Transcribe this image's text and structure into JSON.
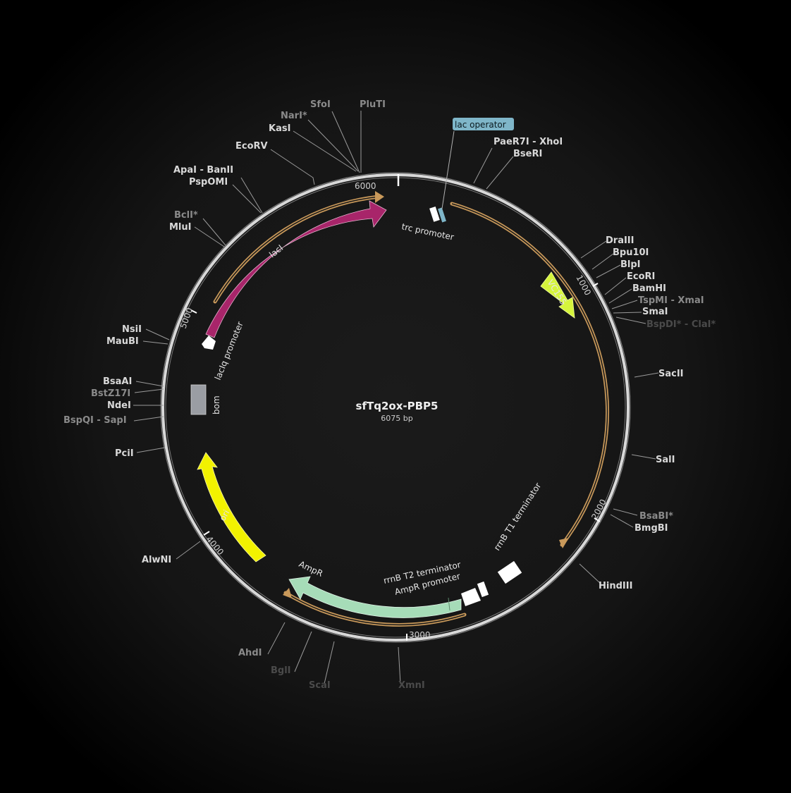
{
  "plasmid": {
    "name": "sfTq2ox-PBP5",
    "length_label": "6075 bp",
    "total_bp": 6075
  },
  "ticks": [
    {
      "label": "1000",
      "bp": 1000
    },
    {
      "label": "2000",
      "bp": 2000
    },
    {
      "label": "3000",
      "bp": 3000
    },
    {
      "label": "4000",
      "bp": 4000
    },
    {
      "label": "5000",
      "bp": 5000
    },
    {
      "label": "6000",
      "bp": 6000
    }
  ],
  "features": {
    "lacI": "lacI",
    "laciq_promoter": "lacIq promoter",
    "bom": "bom",
    "ori": "ori",
    "ampr": "AmpR",
    "ampr_promoter": "AmpR promoter",
    "rrnb_t2": "rrnB T2 terminator",
    "rrnb_t1": "rrnB T1 terminator",
    "vc155": "VC155",
    "trc_promoter": "trc promoter",
    "lac_operator": "lac operator"
  },
  "colors": {
    "lacI": "#a8256a",
    "ori": "#f2f200",
    "ampr": "#a6dcb8",
    "vc155": "#d6f53c",
    "orf_outline": "#c9995a",
    "lac_operator": "#7fb6c9",
    "bom": "#9a9da3",
    "backbone": "#d8d8d8"
  },
  "sites": {
    "sfoi": "SfoI",
    "plutI": "PluTI",
    "nari": "NarI*",
    "kasi": "KasI",
    "ecorv": "EcoRV",
    "apai_banii": "ApaI - BanII",
    "pspomi": "PspOMI",
    "bcli": "BclI*",
    "mlui": "MluI",
    "nsii": "NsiI",
    "maubi": "MauBI",
    "bsaai": "BsaAI",
    "bstz17i": "BstZ17I",
    "ndei": "NdeI",
    "bspqi_sapi": "BspQI - SapI",
    "pcii": "PciI",
    "alwni": "AlwNI",
    "ahdi": "AhdI",
    "bgli": "BglI",
    "scai": "ScaI",
    "xmni": "XmnI",
    "paer7i_xhoi": "PaeR7I - XhoI",
    "bseri": "BseRI",
    "draiii": "DraIII",
    "bpu10i": "Bpu10I",
    "blpi": "BlpI",
    "ecori": "EcoRI",
    "bamhi": "BamHI",
    "tspmi_xmai": "TspMI - XmaI",
    "smai": "SmaI",
    "bspdi_clai": "BspDI* - ClaI*",
    "sacii": "SacII",
    "sali": "SalI",
    "bsabi": "BsaBI*",
    "bmgbi": "BmgBI",
    "hindiii": "HindIII"
  }
}
